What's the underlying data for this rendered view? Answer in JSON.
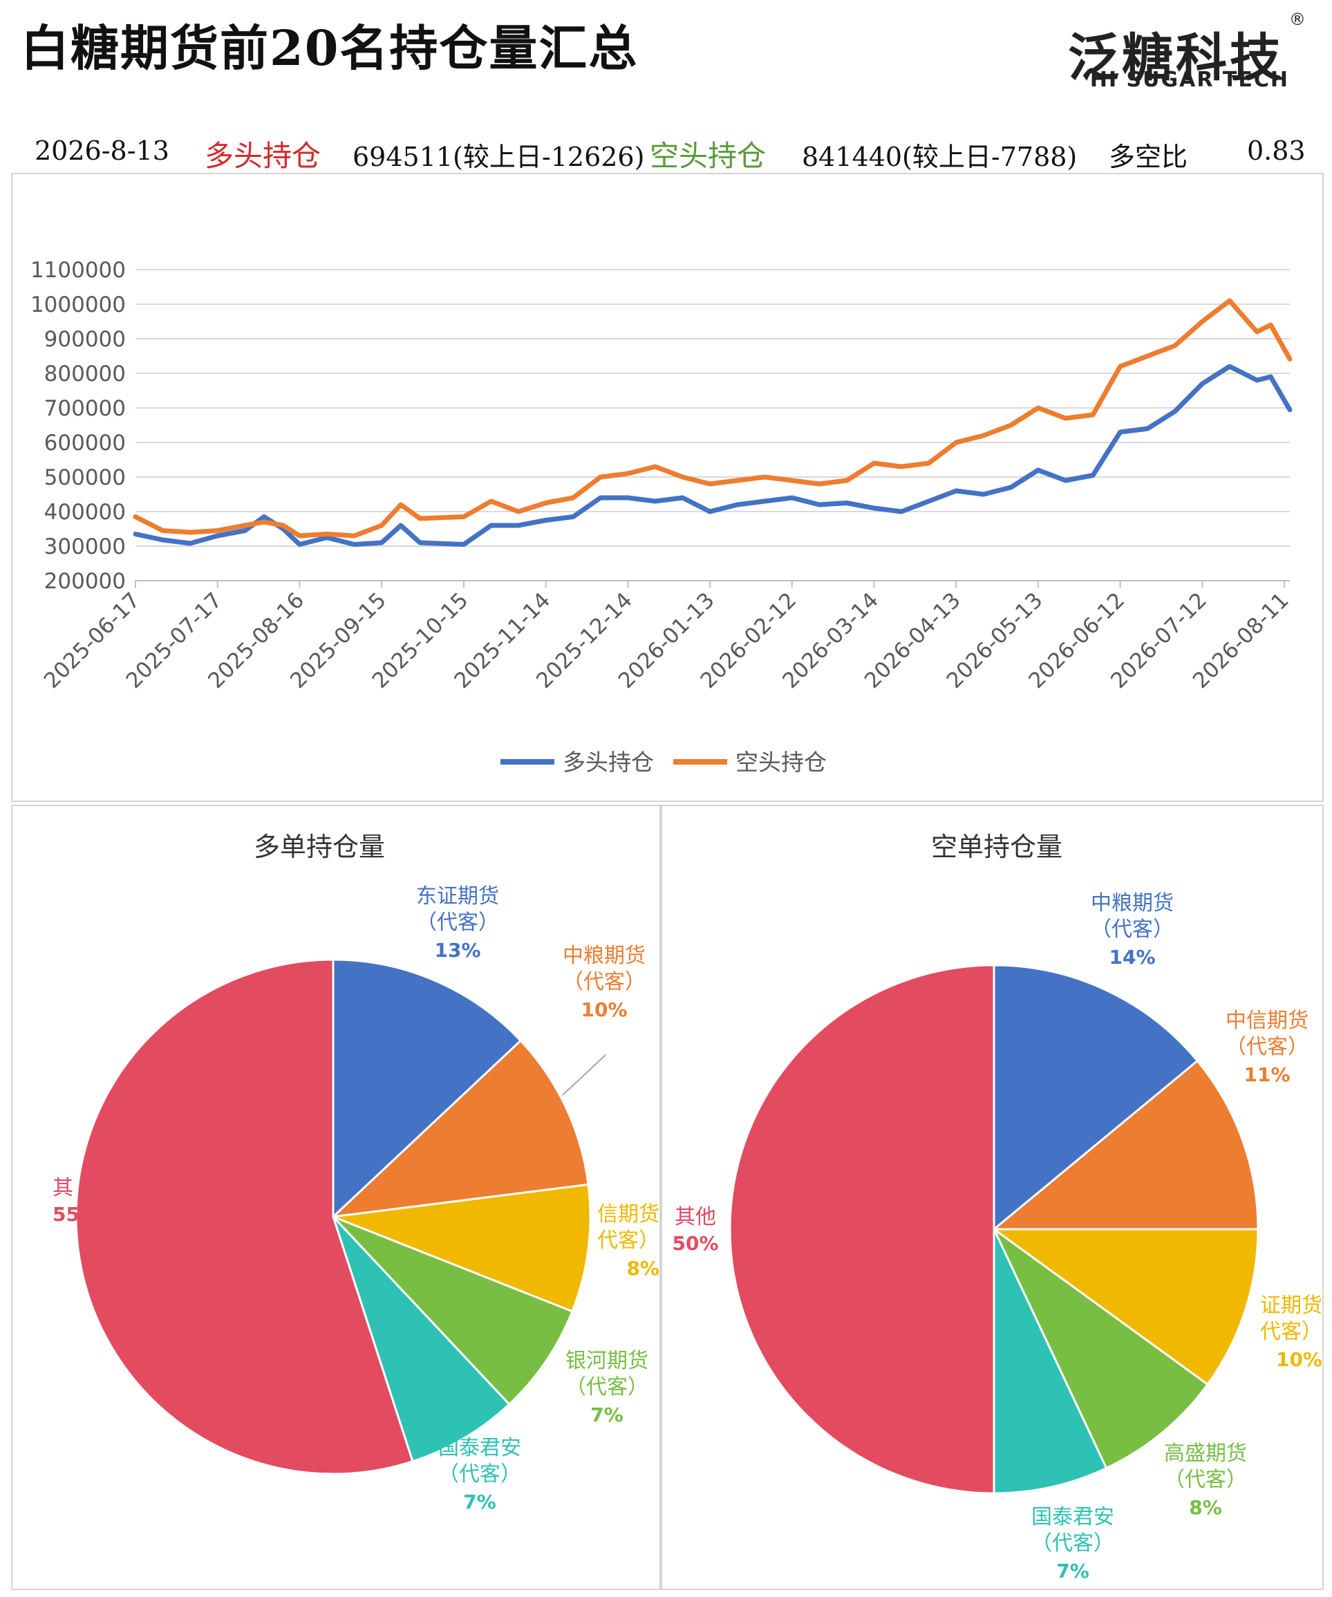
{
  "header": {
    "title": "白糖期货前20名持仓量汇总",
    "brand_cn": "泛糖科技",
    "brand_en": "HI SUGAR TECH",
    "brand_reg": "®"
  },
  "summary": {
    "date": "2026-8-13",
    "long_label": "多头持仓",
    "long_value": "694511(较上日-12626)",
    "short_label": "空头持仓",
    "short_value": "841440(较上日-7788)",
    "ratio_label": "多空比",
    "ratio_value": "0.83"
  },
  "colors": {
    "long": "#4472c4",
    "short": "#ed7d31",
    "long_label": "#d42a2a",
    "short_label": "#5a9a3a",
    "blue": "#4472c4",
    "orange": "#ed7d31",
    "yellow": "#f0b800",
    "green": "#78be43",
    "teal": "#2ec2b4",
    "red": "#e34b60"
  },
  "chart_data": [
    {
      "type": "line",
      "title": "",
      "xlabel": "",
      "ylabel": "",
      "ylim": [
        200000,
        1100000
      ],
      "yticks": [
        "1100000",
        "1000000",
        "900000",
        "800000",
        "700000",
        "600000",
        "500000",
        "400000",
        "300000",
        "200000"
      ],
      "xticks": [
        "2025-06-17",
        "2025-07-17",
        "2025-08-16",
        "2025-09-15",
        "2025-10-15",
        "2025-11-14",
        "2025-12-14",
        "2026-01-13",
        "2026-02-12",
        "2026-03-14",
        "2026-04-13",
        "2026-05-13",
        "2026-06-12",
        "2026-07-12",
        "2026-08-11"
      ],
      "legend_position": "bottom",
      "grid": true,
      "x": [
        "2025-06-17",
        "2025-06-27",
        "2025-07-07",
        "2025-07-17",
        "2025-07-27",
        "2025-08-03",
        "2025-08-10",
        "2025-08-16",
        "2025-08-26",
        "2025-09-05",
        "2025-09-15",
        "2025-09-22",
        "2025-09-29",
        "2025-10-15",
        "2025-10-25",
        "2025-11-04",
        "2025-11-14",
        "2025-11-24",
        "2025-12-04",
        "2025-12-14",
        "2025-12-24",
        "2026-01-03",
        "2026-01-13",
        "2026-01-23",
        "2026-02-02",
        "2026-02-12",
        "2026-02-22",
        "2026-03-04",
        "2026-03-14",
        "2026-03-24",
        "2026-04-03",
        "2026-04-13",
        "2026-04-23",
        "2026-05-03",
        "2026-05-13",
        "2026-05-23",
        "2026-06-02",
        "2026-06-12",
        "2026-06-22",
        "2026-07-02",
        "2026-07-12",
        "2026-07-22",
        "2026-08-01",
        "2026-08-06",
        "2026-08-13"
      ],
      "series": [
        {
          "name": "多头持仓",
          "values": [
            335000,
            318000,
            308000,
            330000,
            345000,
            385000,
            350000,
            305000,
            325000,
            305000,
            310000,
            360000,
            310000,
            305000,
            360000,
            360000,
            375000,
            385000,
            440000,
            440000,
            430000,
            440000,
            400000,
            420000,
            430000,
            440000,
            420000,
            425000,
            410000,
            400000,
            430000,
            460000,
            450000,
            470000,
            520000,
            490000,
            505000,
            630000,
            640000,
            690000,
            770000,
            820000,
            780000,
            790000,
            694511
          ]
        },
        {
          "name": "空头持仓",
          "values": [
            385000,
            345000,
            340000,
            345000,
            360000,
            370000,
            360000,
            330000,
            335000,
            330000,
            360000,
            420000,
            380000,
            385000,
            430000,
            400000,
            425000,
            440000,
            500000,
            510000,
            530000,
            500000,
            480000,
            490000,
            500000,
            490000,
            480000,
            490000,
            540000,
            530000,
            540000,
            600000,
            620000,
            650000,
            700000,
            670000,
            680000,
            820000,
            850000,
            880000,
            950000,
            1010000,
            920000,
            940000,
            841440
          ]
        }
      ]
    },
    {
      "type": "pie",
      "title": "多单持仓量",
      "categories": [
        "东证期货（代客）",
        "中粮期货（代客）",
        "中信期货（代客）",
        "银河期货（代客）",
        "国泰君安（代客）",
        "其他"
      ],
      "values": [
        13,
        10,
        8,
        7,
        7,
        55
      ],
      "labels": [
        {
          "line1": "东证期货",
          "line2": "（代客）",
          "pct": "13%"
        },
        {
          "line1": "中粮期货",
          "line2": "（代客）",
          "pct": "10%"
        },
        {
          "line1": "信期货",
          "line2": "代客）",
          "pct": "8%"
        },
        {
          "line1": "银河期货",
          "line2": "（代客）",
          "pct": "7%"
        },
        {
          "line1": "国泰君安",
          "line2": "（代客）",
          "pct": "7%"
        },
        {
          "line1": "其",
          "line2": "",
          "pct": "55"
        }
      ]
    },
    {
      "type": "pie",
      "title": "空单持仓量",
      "categories": [
        "中粮期货（代客）",
        "中信期货（代客）",
        "东证期货（代客）",
        "高盛期货（代客）",
        "国泰君安（代客）",
        "其他"
      ],
      "values": [
        14,
        11,
        10,
        8,
        7,
        50
      ],
      "labels": [
        {
          "line1": "中粮期货",
          "line2": "（代客）",
          "pct": "14%"
        },
        {
          "line1": "中信期货",
          "line2": "（代客）",
          "pct": "11%"
        },
        {
          "line1": "证期货",
          "line2": "代客）",
          "pct": "10%"
        },
        {
          "line1": "高盛期货",
          "line2": "（代客）",
          "pct": "8%"
        },
        {
          "line1": "国泰君安",
          "line2": "（代客）",
          "pct": "7%"
        },
        {
          "line1": "其他",
          "line2": "",
          "pct": "50%"
        }
      ]
    }
  ]
}
